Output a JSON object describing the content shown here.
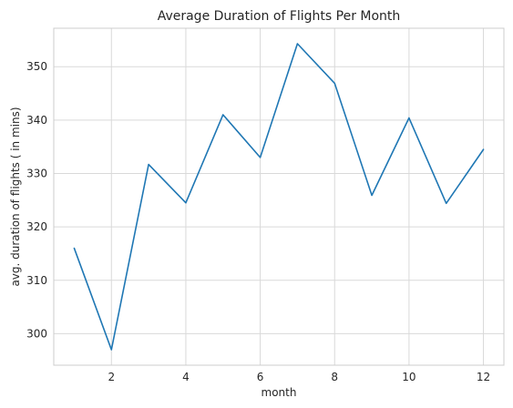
{
  "chart_data": {
    "type": "line",
    "title": "Average Duration of Flights Per Month",
    "xlabel": "month",
    "ylabel": "avg. duration of flights ( in mins)",
    "x": [
      1,
      2,
      3,
      4,
      5,
      6,
      7,
      8,
      9,
      10,
      11,
      12
    ],
    "series": [
      {
        "values": [
          316.0,
          297.0,
          331.7,
          324.5,
          341.0,
          333.0,
          354.3,
          346.9,
          325.9,
          340.4,
          324.4,
          334.5
        ],
        "color": "#1f77b4"
      }
    ],
    "xticks": [
      "2",
      "4",
      "6",
      "8",
      "10",
      "12"
    ],
    "yticks": [
      "300",
      "310",
      "320",
      "330",
      "340",
      "350"
    ],
    "xlim": [
      0.45,
      12.55
    ],
    "ylim": [
      294.1,
      357.2
    ],
    "grid": true
  }
}
